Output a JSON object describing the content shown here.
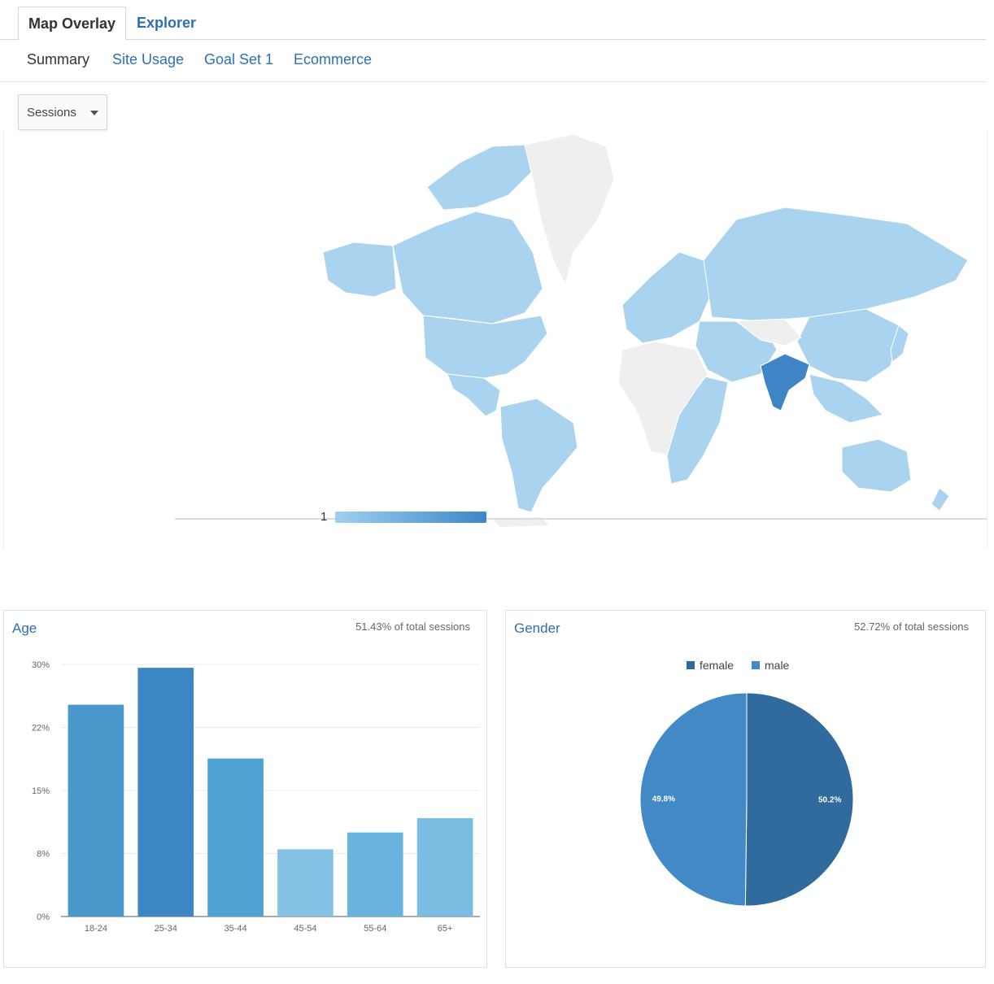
{
  "tabs": {
    "map_overlay": "Map Overlay",
    "explorer": "Explorer"
  },
  "subnav": [
    "Summary",
    "Site Usage",
    "Goal Set 1",
    "Ecommerce"
  ],
  "metric_dropdown": "Sessions",
  "map": {
    "legend_min": "1",
    "colors": {
      "base": "#a9d3ef",
      "highlight": "#3f85c6",
      "empty": "#efefef"
    },
    "highlighted_country": "India"
  },
  "age_panel": {
    "title": "Age",
    "subtitle": "51.43% of total sessions"
  },
  "gender_panel": {
    "title": "Gender",
    "subtitle": "52.72% of total sessions"
  },
  "chart_data": [
    {
      "type": "bar",
      "title": "Age",
      "categories": [
        "18-24",
        "25-34",
        "35-44",
        "45-54",
        "55-64",
        "65+"
      ],
      "values": [
        25.2,
        29.6,
        18.8,
        8.0,
        10.0,
        11.7
      ],
      "yticks": [
        "0%",
        "8%",
        "15%",
        "22%",
        "30%"
      ],
      "ylim": [
        0,
        30
      ],
      "colors": [
        "#4a97cc",
        "#3d86c4",
        "#4fa2d4",
        "#85c2e6",
        "#6ab3df",
        "#79bde3"
      ],
      "grid": true
    },
    {
      "type": "pie",
      "title": "Gender",
      "labels": [
        "female",
        "male"
      ],
      "values": [
        50.2,
        49.8
      ],
      "value_labels": [
        "50.2%",
        "49.8%"
      ],
      "colors": [
        "#316a9c",
        "#4289c6"
      ],
      "legend": "top"
    }
  ]
}
